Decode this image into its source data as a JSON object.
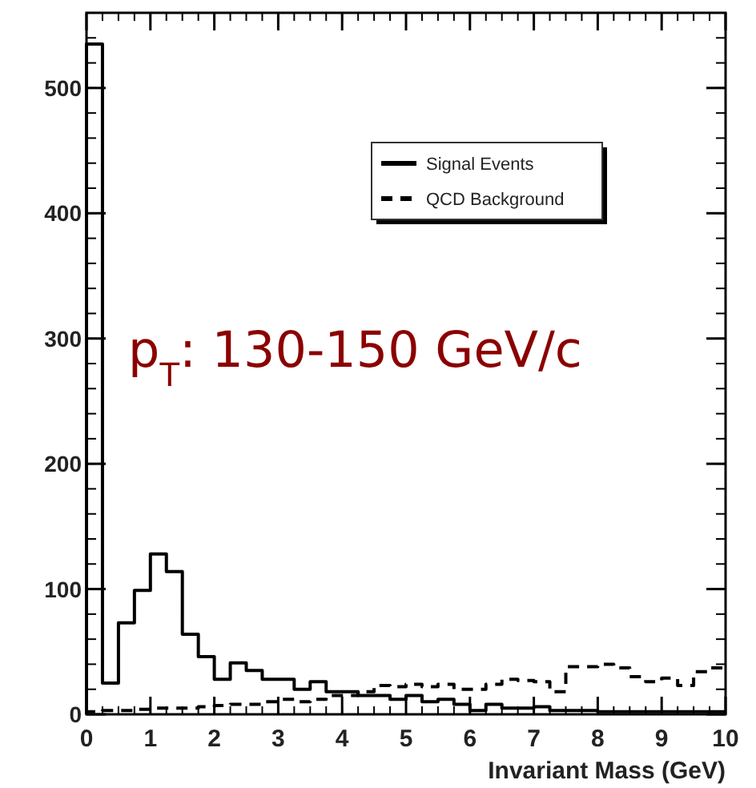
{
  "chart_data": {
    "type": "histogram",
    "xlabel": "Invariant Mass (GeV)",
    "annotations": [
      "p$_{T}$: 130-150 GeV/c"
    ],
    "bins": [
      0,
      0.25,
      0.5,
      0.75,
      1,
      1.25,
      1.5,
      1.75,
      2,
      2.25,
      2.5,
      2.75,
      3,
      3.25,
      3.5,
      3.75,
      4,
      4.25,
      4.5,
      4.75,
      5,
      5.25,
      5.5,
      5.75,
      6,
      6.25,
      6.5,
      6.75,
      7,
      7.25,
      7.5,
      7.75,
      8,
      8.25,
      8.5,
      8.75,
      9,
      9.25,
      9.5,
      9.75,
      10
    ],
    "series": [
      {
        "name": "Signal Events",
        "color": "#000000",
        "line_style": "solid",
        "values": [
          535,
          25,
          73,
          99,
          128,
          114,
          64,
          46,
          28,
          41,
          35,
          28,
          28,
          20,
          26,
          18,
          18,
          15,
          15,
          12,
          15,
          10,
          12,
          8,
          3,
          8,
          5,
          5,
          6,
          3,
          3,
          3,
          2,
          2,
          2,
          2,
          2,
          2,
          2,
          2
        ]
      },
      {
        "name": "QCD Background",
        "color": "#000000",
        "line_style": "dashed",
        "values": [
          2,
          3,
          3,
          4,
          5,
          5,
          5,
          6,
          7,
          8,
          8,
          10,
          12,
          10,
          12,
          15,
          15,
          18,
          23,
          22,
          24,
          22,
          24,
          20,
          20,
          24,
          28,
          27,
          26,
          18,
          38,
          38,
          40,
          37,
          30,
          26,
          29,
          23,
          34,
          37
        ]
      }
    ],
    "xlim": [
      0,
      10
    ],
    "xticks": [
      0,
      1,
      2,
      3,
      4,
      5,
      6,
      7,
      8,
      9,
      10
    ],
    "ylim": [
      0,
      560
    ],
    "yticks": [
      0,
      100,
      200,
      300,
      400,
      500
    ],
    "legend": "top right",
    "grid": false
  }
}
